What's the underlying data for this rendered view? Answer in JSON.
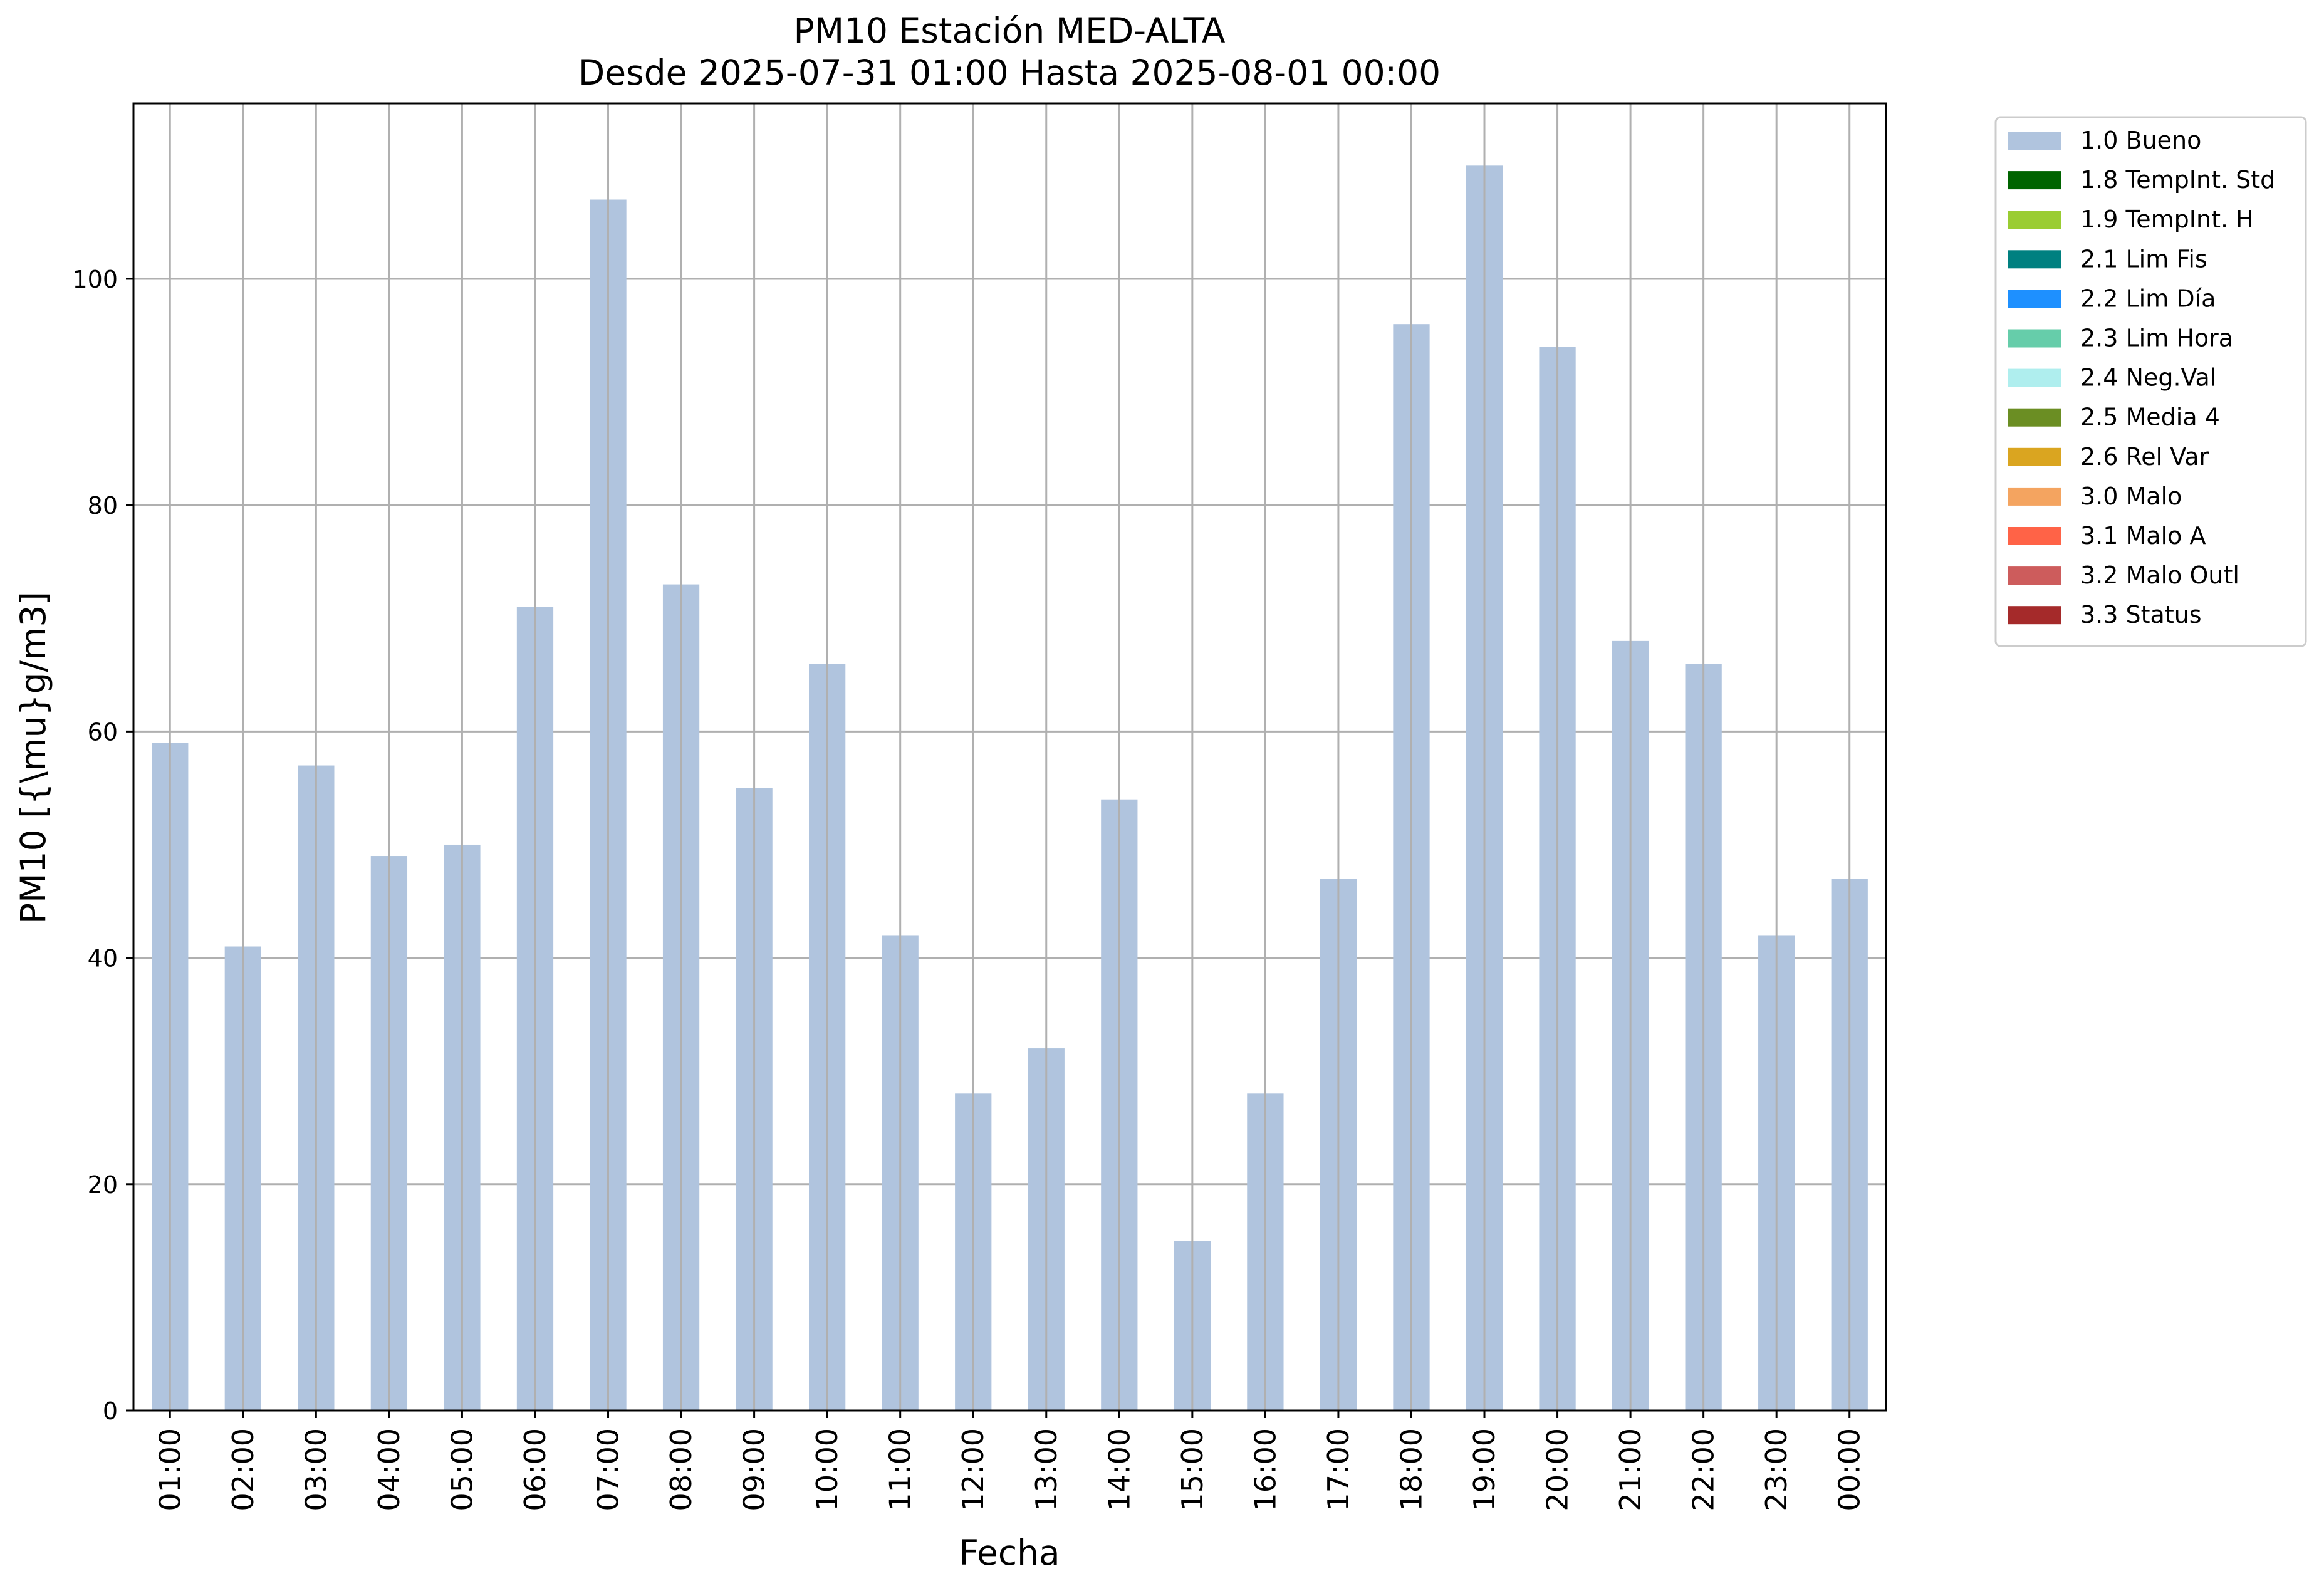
{
  "chart_data": {
    "type": "bar",
    "title": "PM10 Estación MED-ALTA",
    "subtitle": "Desde 2025-07-31 01:00 Hasta 2025-08-01 00:00",
    "xlabel": "Fecha",
    "ylabel": "PM10 [{\\mu}g/m3]",
    "categories": [
      "01:00",
      "02:00",
      "03:00",
      "04:00",
      "05:00",
      "06:00",
      "07:00",
      "08:00",
      "09:00",
      "10:00",
      "11:00",
      "12:00",
      "13:00",
      "14:00",
      "15:00",
      "16:00",
      "17:00",
      "18:00",
      "19:00",
      "20:00",
      "21:00",
      "22:00",
      "23:00",
      "00:00"
    ],
    "series": [
      {
        "name": "1.0 Bueno",
        "color": "#b0c4de",
        "values": [
          59,
          41,
          57,
          49,
          50,
          71,
          107,
          73,
          55,
          66,
          42,
          28,
          32,
          54,
          15,
          28,
          47,
          96,
          110,
          94,
          68,
          66,
          42,
          47
        ]
      }
    ],
    "ylim": [
      0,
      115.5
    ],
    "yticks": [
      0,
      20,
      40,
      60,
      80,
      100
    ],
    "grid": true,
    "legend_position": "outside-top-right",
    "legend": [
      {
        "label": "1.0 Bueno",
        "color": "#b0c4de"
      },
      {
        "label": "1.8 TempInt. Std",
        "color": "#006400"
      },
      {
        "label": "1.9 TempInt. H",
        "color": "#9acd32"
      },
      {
        "label": "2.1 Lim Fis",
        "color": "#008080"
      },
      {
        "label": "2.2 Lim Día",
        "color": "#1e90ff"
      },
      {
        "label": "2.3 Lim Hora",
        "color": "#66cdaa"
      },
      {
        "label": "2.4 Neg.Val",
        "color": "#afeeee"
      },
      {
        "label": "2.5 Media 4",
        "color": "#6b8e23"
      },
      {
        "label": "2.6 Rel Var",
        "color": "#daa520"
      },
      {
        "label": "3.0 Malo",
        "color": "#f4a460"
      },
      {
        "label": "3.1 Malo A",
        "color": "#ff6347"
      },
      {
        "label": "3.2 Malo Outl",
        "color": "#cd5c5c"
      },
      {
        "label": "3.3 Status",
        "color": "#a52a2a"
      }
    ]
  }
}
